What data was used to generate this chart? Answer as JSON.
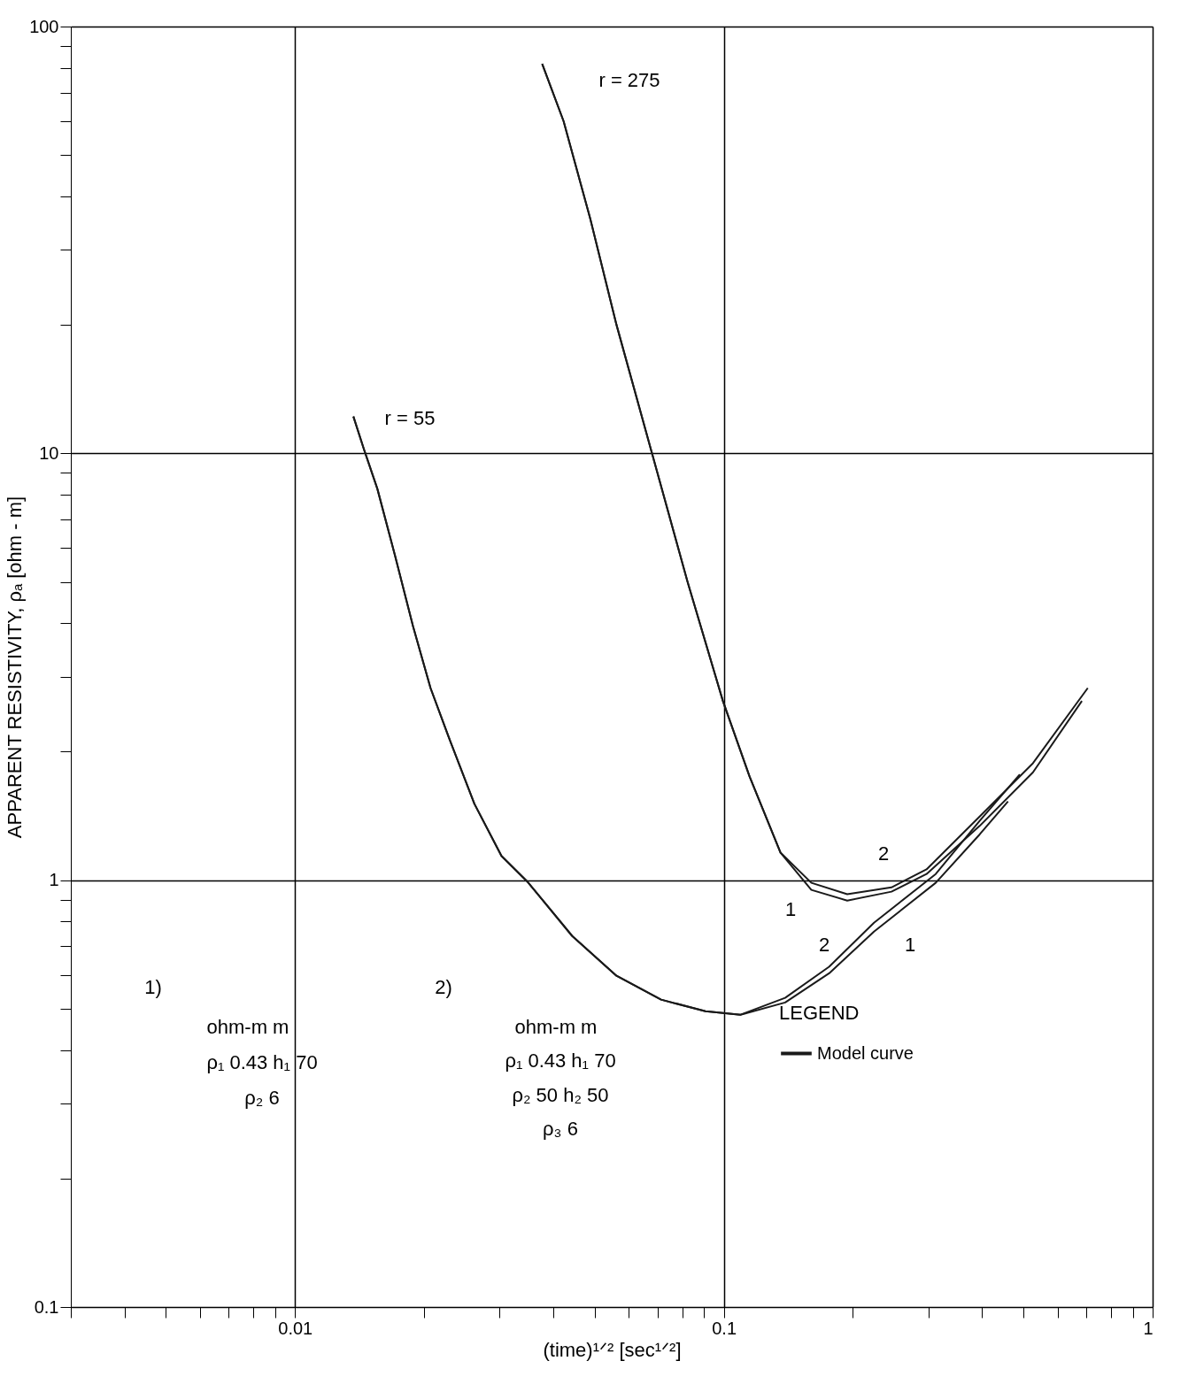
{
  "chart_data": {
    "type": "line",
    "xlabel": "(time)¹ᐟ² [sec¹ᐟ²]",
    "ylabel": "APPARENT RESISTIVITY, ρₐ [ohm - m]",
    "legend_title": "LEGEND",
    "legend": "right",
    "log": "xy",
    "grid": true,
    "line_style": "solid",
    "marker": "none",
    "xlim": [
      0.003,
      1
    ],
    "ylim": [
      0.1,
      100
    ],
    "xticks": [
      {
        "value": 0.003,
        "label": null
      },
      {
        "value": 0.004,
        "label": null
      },
      {
        "value": 0.005,
        "label": null
      },
      {
        "value": 0.006,
        "label": null
      },
      {
        "value": 0.007,
        "label": null
      },
      {
        "value": 0.008,
        "label": null
      },
      {
        "value": 0.009,
        "label": null
      },
      0.01,
      {
        "value": 0.02,
        "label": null
      },
      {
        "value": 0.03,
        "label": null
      },
      {
        "value": 0.04,
        "label": null
      },
      {
        "value": 0.05,
        "label": null
      },
      {
        "value": 0.06,
        "label": null
      },
      {
        "value": 0.07,
        "label": null
      },
      {
        "value": 0.08,
        "label": null
      },
      {
        "value": 0.09,
        "label": null
      },
      0.1,
      {
        "value": 0.2,
        "label": null
      },
      {
        "value": 0.3,
        "label": null
      },
      {
        "value": 0.4,
        "label": null
      },
      {
        "value": 0.5,
        "label": null
      },
      {
        "value": 0.6,
        "label": null
      },
      {
        "value": 0.7,
        "label": null
      },
      {
        "value": 0.8,
        "label": null
      },
      {
        "value": 0.9,
        "label": null
      },
      1
    ],
    "yticks": [
      0.1,
      {
        "value": 0.2,
        "label": null
      },
      {
        "value": 0.3,
        "label": null
      },
      {
        "value": 0.4,
        "label": null
      },
      {
        "value": 0.5,
        "label": null
      },
      {
        "value": 0.6,
        "label": null
      },
      {
        "value": 0.7,
        "label": null
      },
      {
        "value": 0.8,
        "label": null
      },
      {
        "value": 0.9,
        "label": null
      },
      1,
      {
        "value": 2,
        "label": null
      },
      {
        "value": 3,
        "label": null
      },
      {
        "value": 4,
        "label": null
      },
      {
        "value": 5,
        "label": null
      },
      {
        "value": 6,
        "label": null
      },
      {
        "value": 7,
        "label": null
      },
      {
        "value": 8,
        "label": null
      },
      {
        "value": 9,
        "label": null
      },
      10,
      {
        "value": 20,
        "label": null
      },
      {
        "value": 30,
        "label": null
      },
      {
        "value": 40,
        "label": null
      },
      {
        "value": 50,
        "label": null
      },
      {
        "value": 60,
        "label": null
      },
      {
        "value": 70,
        "label": null
      },
      {
        "value": 80,
        "label": null
      },
      {
        "value": 90,
        "label": null
      },
      100
    ],
    "series": [
      {
        "name": "Model curve",
        "color": "#1a1a1a",
        "x": [
          0.01368,
          0.01449,
          0.01556,
          0.0171,
          0.01884,
          0.0207,
          0.0228,
          0.0262,
          0.0303,
          0.0349,
          0.0443,
          0.0562,
          0.0714,
          0.0906,
          0.1094,
          0.139,
          0.176,
          0.224,
          0.312,
          0.395,
          0.46
        ],
        "values": [
          12.2,
          10.2,
          8.26,
          5.77,
          3.94,
          2.82,
          2.17,
          1.51,
          1.14,
          0.99,
          0.74,
          0.597,
          0.525,
          0.493,
          0.484,
          0.517,
          0.605,
          0.758,
          0.986,
          1.28,
          1.53
        ]
      },
      {
        "color": "#1a1a1a",
        "x": [
          0.01368,
          0.01449,
          0.01556,
          0.0171,
          0.01884,
          0.0207,
          0.0228,
          0.0262,
          0.0303,
          0.0349,
          0.0443,
          0.0562,
          0.0714,
          0.0906,
          0.1094,
          0.139,
          0.176,
          0.224,
          0.312,
          0.395,
          0.49
        ],
        "values": [
          12.2,
          10.2,
          8.26,
          5.77,
          3.94,
          2.82,
          2.17,
          1.51,
          1.14,
          0.99,
          0.74,
          0.597,
          0.525,
          0.493,
          0.484,
          0.53,
          0.627,
          0.795,
          1.034,
          1.377,
          1.77
        ]
      },
      {
        "color": "#1a1a1a",
        "x": [
          0.0377,
          0.0423,
          0.0488,
          0.0562,
          0.068,
          0.0823,
          0.0995,
          0.1148,
          0.1356,
          0.16,
          0.194,
          0.246,
          0.297,
          0.395,
          0.526,
          0.684
        ],
        "values": [
          81.8,
          60,
          35.5,
          20,
          10,
          5.0,
          2.63,
          1.75,
          1.16,
          0.949,
          0.896,
          0.94,
          1.034,
          1.34,
          1.79,
          2.63
        ]
      },
      {
        "color": "#1a1a1a",
        "x": [
          0.0377,
          0.0423,
          0.0488,
          0.0562,
          0.068,
          0.0823,
          0.0995,
          0.1148,
          0.1356,
          0.16,
          0.194,
          0.246,
          0.297,
          0.395,
          0.526,
          0.706
        ],
        "values": [
          81.8,
          60,
          35.5,
          20,
          10,
          5.0,
          2.63,
          1.75,
          1.16,
          0.986,
          0.927,
          0.962,
          1.06,
          1.41,
          1.88,
          2.82
        ]
      }
    ],
    "annotations": [
      "r = 275",
      "r = 55",
      "2",
      "1",
      "2",
      "1",
      "1)",
      "ohm-m     m",
      "ρ₁   0.43   h₁   70",
      "ρ₂   6",
      "2)",
      "ohm-m     m",
      "ρ₁   0.43   h₁   70",
      "ρ₂   50   h₂   50",
      "ρ₃   6"
    ]
  }
}
